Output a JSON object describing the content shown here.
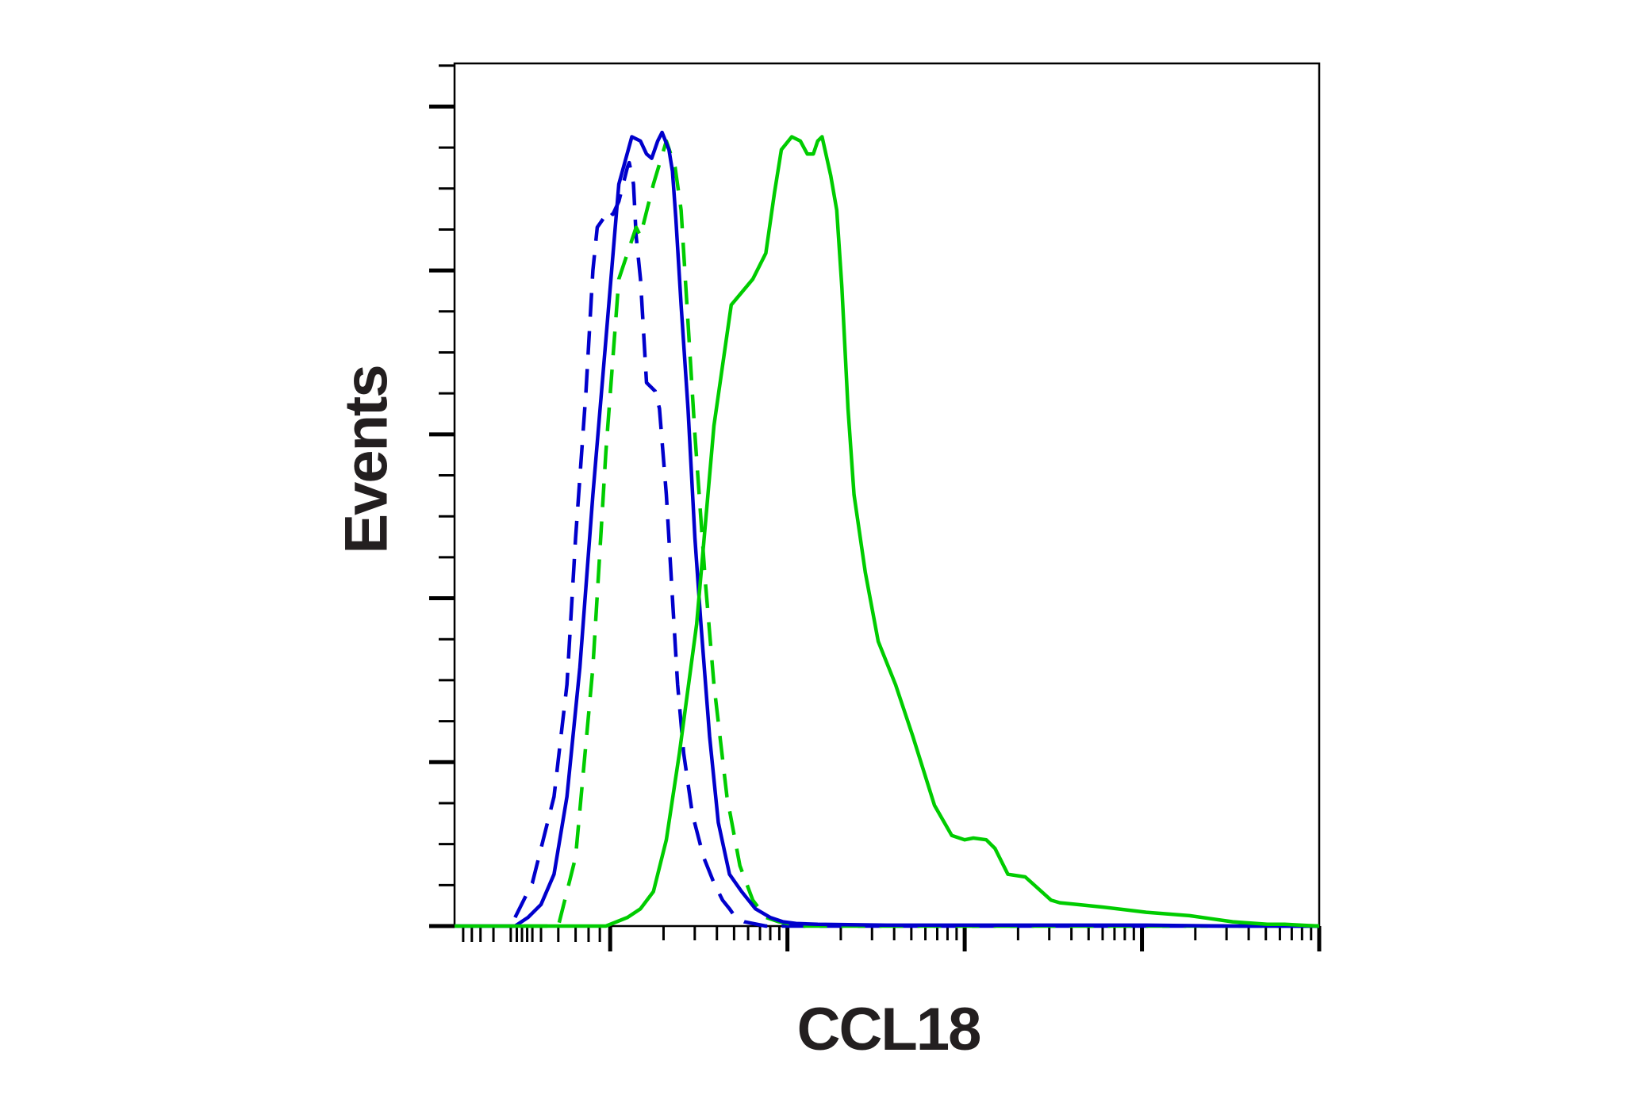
{
  "chart_data": {
    "type": "line",
    "title": "",
    "xlabel": "CCL18",
    "ylabel": "Events",
    "x_scale": "log",
    "x_decades": 5,
    "xlim": [
      0,
      1
    ],
    "ylim": [
      0,
      1
    ],
    "grid": false,
    "legend": "none",
    "series": [
      {
        "color": "#0000cc",
        "dash": true,
        "x": [
          0.07,
          0.09,
          0.115,
          0.13,
          0.14,
          0.152,
          0.16,
          0.165,
          0.172,
          0.178,
          0.183,
          0.19,
          0.2,
          0.202,
          0.207,
          0.21,
          0.215,
          0.222,
          0.232,
          0.237,
          0.245,
          0.252,
          0.258,
          0.265,
          0.275,
          0.288,
          0.3,
          0.31,
          0.318,
          0.325,
          0.335,
          0.36,
          0.4,
          0.5,
          1.0
        ],
        "y": [
          0.01,
          0.05,
          0.15,
          0.28,
          0.45,
          0.62,
          0.76,
          0.81,
          0.82,
          0.83,
          0.825,
          0.84,
          0.88,
          0.885,
          0.86,
          0.8,
          0.75,
          0.63,
          0.62,
          0.6,
          0.5,
          0.38,
          0.28,
          0.2,
          0.13,
          0.08,
          0.05,
          0.03,
          0.02,
          0.01,
          0.005,
          0.0,
          0.0,
          0.0,
          0.0
        ]
      },
      {
        "color": "#00cc00",
        "dash": true,
        "x": [
          0.08,
          0.12,
          0.14,
          0.16,
          0.175,
          0.19,
          0.21,
          0.215,
          0.22,
          0.23,
          0.245,
          0.255,
          0.262,
          0.27,
          0.278,
          0.29,
          0.3,
          0.315,
          0.33,
          0.345,
          0.36,
          0.375,
          0.4,
          0.5,
          1.0
        ],
        "y": [
          0.0,
          0.0,
          0.08,
          0.3,
          0.55,
          0.75,
          0.81,
          0.8,
          0.82,
          0.86,
          0.91,
          0.88,
          0.83,
          0.7,
          0.57,
          0.4,
          0.28,
          0.15,
          0.07,
          0.03,
          0.01,
          0.005,
          0.0,
          0.0,
          0.0
        ]
      },
      {
        "color": "#0000cc",
        "dash": false,
        "x": [
          0.0,
          0.07,
          0.085,
          0.1,
          0.115,
          0.13,
          0.145,
          0.16,
          0.175,
          0.19,
          0.205,
          0.215,
          0.222,
          0.228,
          0.235,
          0.24,
          0.248,
          0.252,
          0.256,
          0.262,
          0.27,
          0.278,
          0.285,
          0.295,
          0.305,
          0.318,
          0.332,
          0.348,
          0.365,
          0.38,
          0.395,
          0.42,
          0.5,
          0.6,
          0.7,
          0.8,
          0.9,
          1.0
        ],
        "y": [
          0.0,
          0.0,
          0.01,
          0.025,
          0.06,
          0.15,
          0.3,
          0.5,
          0.68,
          0.86,
          0.915,
          0.91,
          0.895,
          0.89,
          0.91,
          0.92,
          0.9,
          0.875,
          0.82,
          0.72,
          0.6,
          0.45,
          0.35,
          0.22,
          0.12,
          0.06,
          0.04,
          0.02,
          0.01,
          0.005,
          0.003,
          0.002,
          0.001,
          0.001,
          0.001,
          0.001,
          0.0,
          0.0
        ]
      },
      {
        "color": "#00cc00",
        "dash": false,
        "x": [
          0.0,
          0.15,
          0.175,
          0.2,
          0.215,
          0.23,
          0.245,
          0.26,
          0.28,
          0.3,
          0.32,
          0.345,
          0.36,
          0.37,
          0.378,
          0.39,
          0.4,
          0.408,
          0.415,
          0.42,
          0.425,
          0.435,
          0.442,
          0.448,
          0.455,
          0.462,
          0.475,
          0.49,
          0.51,
          0.53,
          0.555,
          0.575,
          0.59,
          0.6,
          0.615,
          0.625,
          0.64,
          0.66,
          0.69,
          0.7,
          0.72,
          0.75,
          0.8,
          0.85,
          0.9,
          0.94,
          0.96,
          1.0
        ],
        "y": [
          0.0,
          0.0,
          0.0,
          0.01,
          0.02,
          0.04,
          0.1,
          0.2,
          0.35,
          0.58,
          0.72,
          0.75,
          0.78,
          0.85,
          0.9,
          0.915,
          0.91,
          0.895,
          0.895,
          0.91,
          0.915,
          0.87,
          0.83,
          0.74,
          0.6,
          0.5,
          0.41,
          0.33,
          0.28,
          0.22,
          0.14,
          0.105,
          0.1,
          0.102,
          0.1,
          0.09,
          0.06,
          0.057,
          0.03,
          0.027,
          0.025,
          0.022,
          0.016,
          0.012,
          0.005,
          0.002,
          0.002,
          0.0
        ]
      }
    ]
  }
}
